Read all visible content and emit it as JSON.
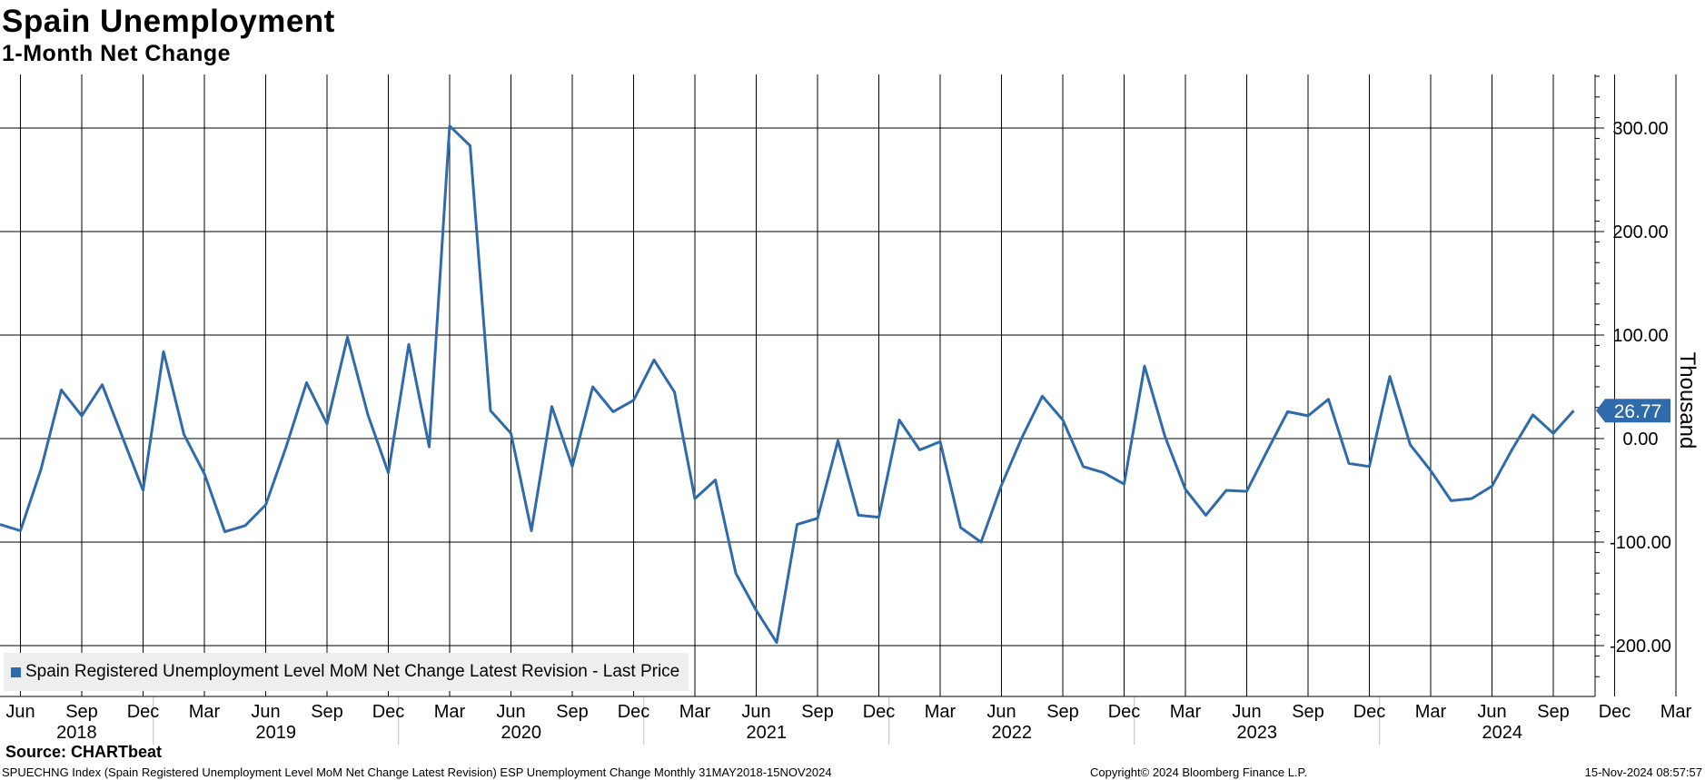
{
  "header": {
    "title": "Spain Unemployment",
    "subtitle": "1-Month Net Change"
  },
  "legend": {
    "label": "Spain Registered Unemployment Level MoM Net Change Latest Revision - Last Price"
  },
  "footer": {
    "source": "Source: CHARTbeat",
    "description": "SPUECHNG Index (Spain Registered Unemployment Level MoM Net Change Latest Revision) ESP Unemployment Change  Monthly 31MAY2018-15NOV2024",
    "copyright": "Copyright© 2024 Bloomberg Finance L.P.",
    "timestamp": "15-Nov-2024 08:57:57"
  },
  "chart_data": {
    "type": "line",
    "title": "Spain Unemployment",
    "subtitle": "1-Month Net Change",
    "ylabel": "Thousand",
    "ylim": [
      -250,
      350
    ],
    "yticks": [
      300,
      200,
      100,
      0,
      -100,
      -200
    ],
    "ytick_labels": [
      "300.00",
      "200.00",
      "100.00",
      "0.00",
      "-100.00",
      "-200.00"
    ],
    "grid": true,
    "y_axis_position": "right",
    "legend_position": "bottom-left",
    "line_color": "#2f6bab",
    "last_value_label": "26.77",
    "month_ticks": [
      "Jun",
      "Sep",
      "Dec",
      "Mar",
      "Jun",
      "Sep",
      "Dec",
      "Mar",
      "Jun",
      "Sep",
      "Dec",
      "Mar",
      "Jun",
      "Sep",
      "Dec",
      "Mar",
      "Jun",
      "Sep",
      "Dec",
      "Mar",
      "Jun",
      "Sep",
      "Dec",
      "Mar",
      "Jun",
      "Sep",
      "Dec",
      "Mar",
      "Jun",
      "Sep"
    ],
    "year_labels": [
      "2018",
      "2019",
      "2020",
      "2021",
      "2022",
      "2023",
      "2024"
    ],
    "x_start": "2018-05",
    "x_end": "2024-10",
    "series": [
      {
        "name": "Spain Registered Unemployment Level MoM Net Change Latest Revision - Last Price",
        "values": [
          -83,
          -89,
          -30,
          47,
          22,
          52,
          1,
          -50,
          84,
          4,
          -34,
          -90,
          -84,
          -64,
          -8,
          54,
          14,
          98,
          23,
          -33,
          91,
          -8,
          302,
          283,
          27,
          5,
          -89,
          31,
          -27,
          50,
          26,
          37,
          76,
          45,
          -58,
          -40,
          -130,
          -166,
          -197,
          -83,
          -77,
          -2,
          -74,
          -76,
          18,
          -11,
          -3,
          -86,
          -100,
          -45,
          1,
          41,
          18,
          -27,
          -33,
          -44,
          70,
          2,
          -49,
          -74,
          -50,
          -51,
          -12,
          26,
          22,
          38,
          -24,
          -27,
          60,
          -6,
          -31,
          -60,
          -58,
          -46,
          -10,
          23,
          5,
          27
        ]
      }
    ]
  }
}
